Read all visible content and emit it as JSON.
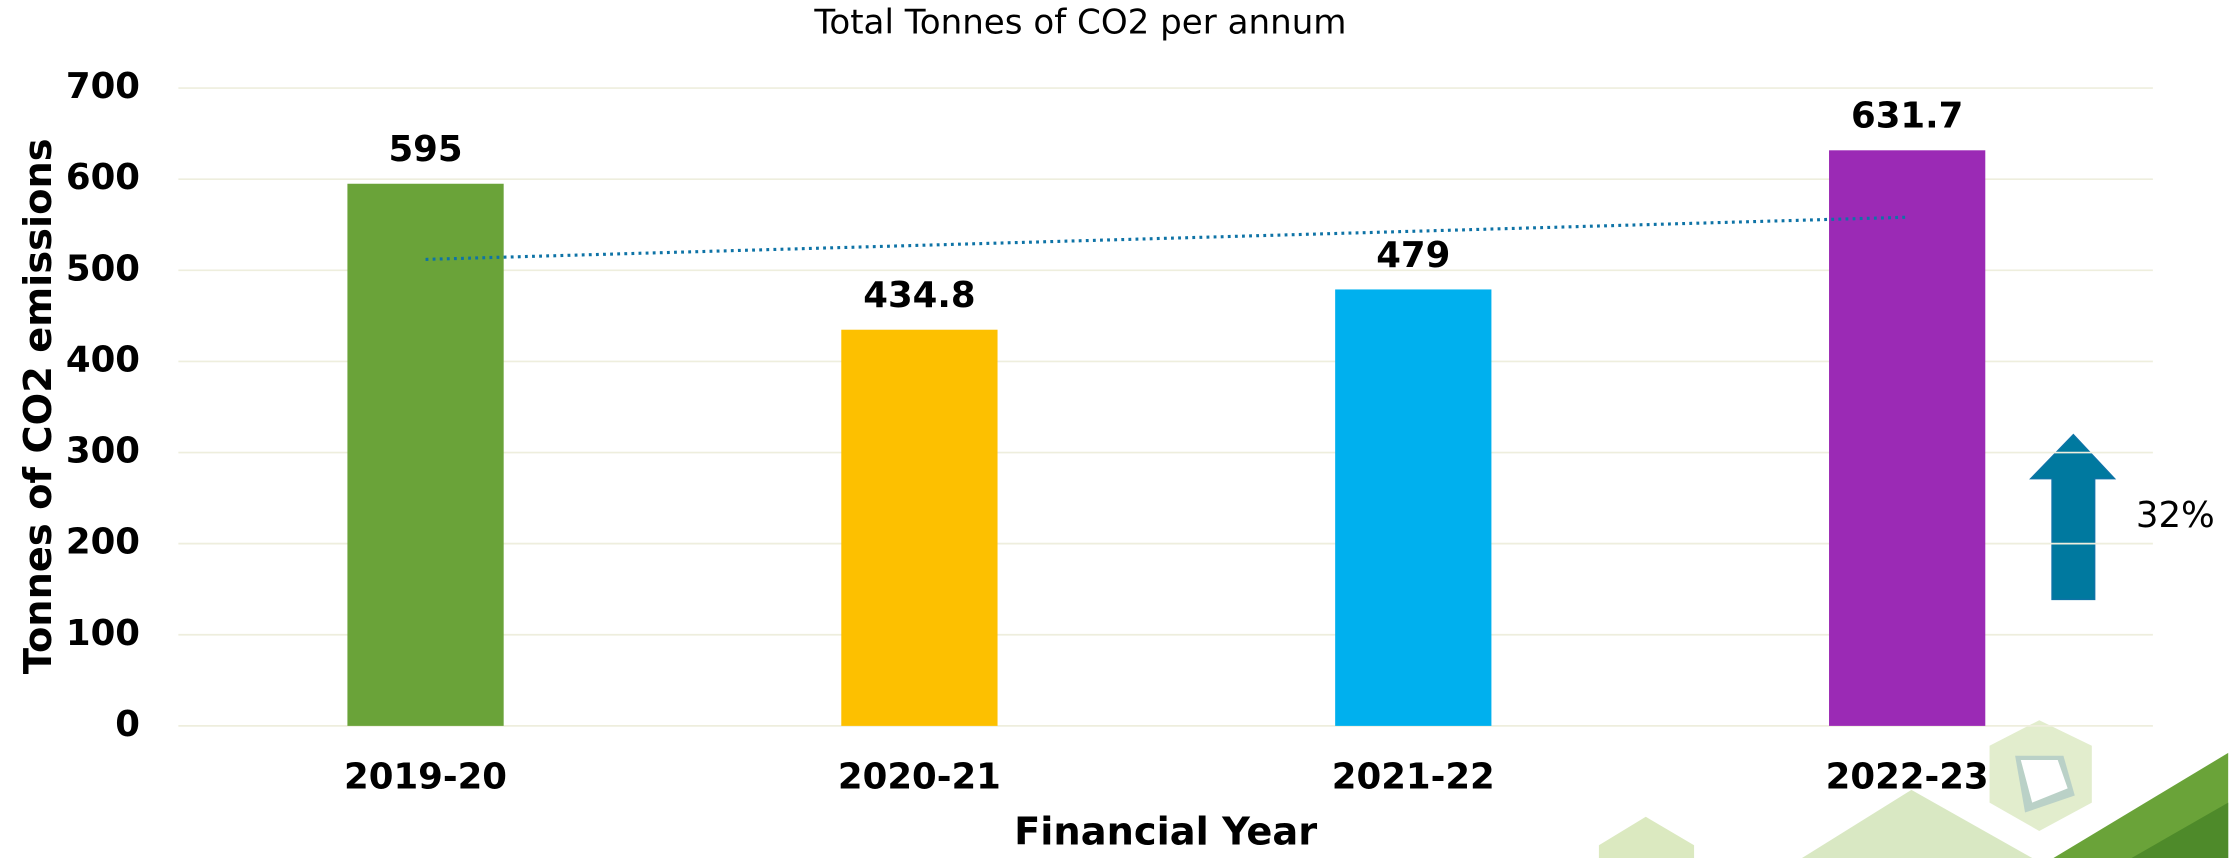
{
  "chart_data": {
    "type": "bar",
    "title": "Total Tonnes of CO2 per annum",
    "x_label": "Financial Year",
    "y_label": "Tonnes of CO2 emissions",
    "categories": [
      "2019-20",
      "2020-21",
      "2021-22",
      "2022-23"
    ],
    "values": [
      595,
      434.8,
      479,
      631.7
    ],
    "colors": [
      "#6aa339",
      "#fdc000",
      "#00b0ee",
      "#9b2ab5"
    ],
    "ylim": [
      0,
      700
    ],
    "yticks": [
      0,
      100,
      200,
      300,
      400,
      500,
      600,
      700
    ],
    "grid": true,
    "trendline": true,
    "trendline_color": "#0e73a6",
    "annotation": "32%"
  }
}
